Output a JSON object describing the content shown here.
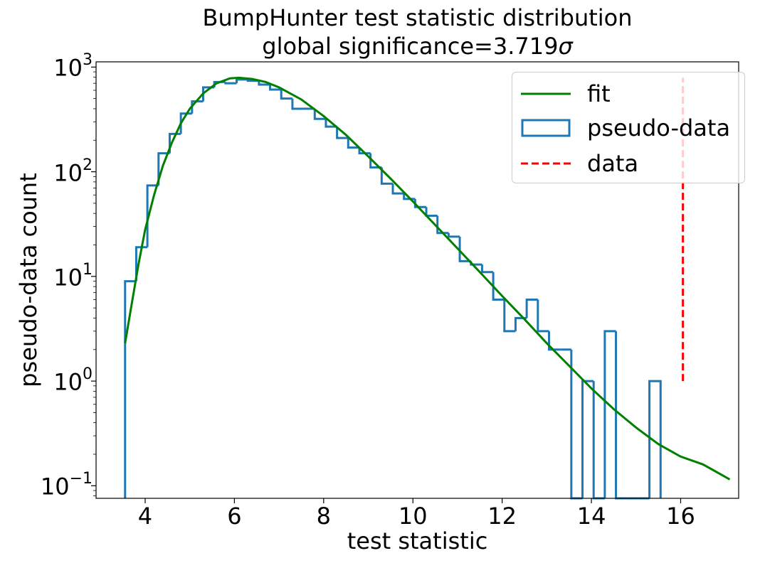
{
  "chart_data": {
    "type": "step-histogram",
    "title_line1": "BumpHunter test statistic distribution",
    "title_line2_prefix": "global significance=3.719",
    "title_line2_symbol": "σ",
    "xlabel": "test statistic",
    "ylabel": "pseudo-data count",
    "xlim": [
      2.9,
      17.3
    ],
    "ylim_log10": [
      -1.12,
      3.05
    ],
    "yscale": "log",
    "grid": false,
    "legend_position": "upper right",
    "x_ticks": [
      {
        "value": 4,
        "label": "4"
      },
      {
        "value": 6,
        "label": "6"
      },
      {
        "value": 8,
        "label": "8"
      },
      {
        "value": 10,
        "label": "10"
      },
      {
        "value": 12,
        "label": "12"
      },
      {
        "value": 14,
        "label": "14"
      },
      {
        "value": 16,
        "label": "16"
      }
    ],
    "y_ticks": [
      {
        "exp": -1,
        "base": "10",
        "sup": "−1"
      },
      {
        "exp": 0,
        "base": "10",
        "sup": "0"
      },
      {
        "exp": 1,
        "base": "10",
        "sup": "1"
      },
      {
        "exp": 2,
        "base": "10",
        "sup": "2"
      },
      {
        "exp": 3,
        "base": "10",
        "sup": "3"
      }
    ],
    "histogram": {
      "name": "pseudo-data",
      "color": "#1f77b4",
      "bin_start": 3.55,
      "bin_width": 0.25,
      "counts": [
        9,
        19,
        74,
        150,
        230,
        360,
        470,
        640,
        720,
        700,
        760,
        740,
        680,
        610,
        500,
        400,
        400,
        320,
        270,
        210,
        170,
        150,
        110,
        77,
        62,
        55,
        46,
        38,
        26,
        24,
        14,
        13,
        11,
        6,
        3,
        4,
        6,
        3,
        2,
        2,
        0,
        1,
        0,
        3,
        0,
        0,
        0,
        1
      ]
    },
    "fit": {
      "name": "fit",
      "color": "#008000",
      "x": [
        3.55,
        3.7,
        3.85,
        4.0,
        4.2,
        4.4,
        4.6,
        4.8,
        5.0,
        5.3,
        5.6,
        5.9,
        6.1,
        6.4,
        6.7,
        7.0,
        7.5,
        8.0,
        8.5,
        9.0,
        9.5,
        10.0,
        10.5,
        11.0,
        11.5,
        12.0,
        12.5,
        13.0,
        13.5,
        14.0,
        14.5,
        15.0,
        15.5,
        16.0,
        16.5,
        17.1
      ],
      "y": [
        2.3,
        5.5,
        13,
        28,
        60,
        115,
        190,
        290,
        400,
        560,
        700,
        780,
        790,
        770,
        720,
        640,
        490,
        340,
        225,
        140,
        86,
        52,
        31,
        18.5,
        11,
        6.5,
        3.9,
        2.3,
        1.4,
        0.85,
        0.54,
        0.36,
        0.25,
        0.19,
        0.16,
        0.115
      ]
    },
    "data_line": {
      "name": "data",
      "color": "#ff0000",
      "x": 16.05,
      "y_range": [
        1,
        790
      ]
    },
    "legend": [
      {
        "label": "fit",
        "style": "line",
        "color": "#008000"
      },
      {
        "label": "pseudo-data",
        "style": "box",
        "color": "#1f77b4"
      },
      {
        "label": "data",
        "style": "dashed",
        "color": "#ff0000"
      }
    ]
  }
}
